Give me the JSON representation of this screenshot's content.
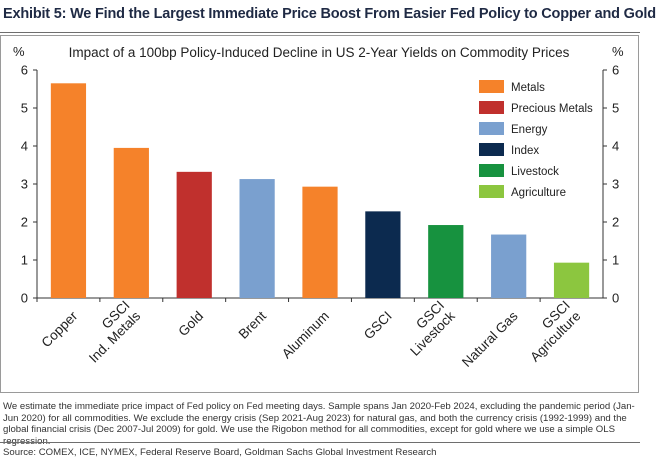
{
  "header": {
    "title": "Exhibit 5: We Find the Largest Immediate Price Boost From Easier Fed Policy to Copper and Gold"
  },
  "chart_data": {
    "type": "bar",
    "title": "Impact of a 100bp Policy-Induced Decline in US 2-Year Yields on Commodity Prices",
    "ylabel_left": "%",
    "ylabel_right": "%",
    "ylim": [
      0,
      6
    ],
    "yticks": [
      "0",
      "1",
      "2",
      "3",
      "4",
      "5",
      "6"
    ],
    "grid": false,
    "legend_position": "top-right",
    "categories": [
      {
        "lines": [
          "Copper"
        ],
        "value": 5.65,
        "group": "Metals"
      },
      {
        "lines": [
          "GSCI",
          "Ind. Metals"
        ],
        "value": 3.95,
        "group": "Metals"
      },
      {
        "lines": [
          "Gold"
        ],
        "value": 3.32,
        "group": "Precious Metals"
      },
      {
        "lines": [
          "Brent"
        ],
        "value": 3.13,
        "group": "Energy"
      },
      {
        "lines": [
          "Aluminum"
        ],
        "value": 2.93,
        "group": "Metals"
      },
      {
        "lines": [
          "GSCI"
        ],
        "value": 2.28,
        "group": "Index"
      },
      {
        "lines": [
          "GSCI",
          "Livestock"
        ],
        "value": 1.92,
        "group": "Livestock"
      },
      {
        "lines": [
          "Natural Gas"
        ],
        "value": 1.67,
        "group": "Energy"
      },
      {
        "lines": [
          "GSCI",
          "Agriculture"
        ],
        "value": 0.93,
        "group": "Agriculture"
      }
    ],
    "legend": [
      {
        "name": "Metals",
        "color": "#f5822a"
      },
      {
        "name": "Precious Metals",
        "color": "#c0302d"
      },
      {
        "name": "Energy",
        "color": "#7aa0cf"
      },
      {
        "name": "Index",
        "color": "#0c2a4f"
      },
      {
        "name": "Livestock",
        "color": "#17923f"
      },
      {
        "name": "Agriculture",
        "color": "#8cc63f"
      }
    ]
  },
  "footnote": "We estimate the immediate price impact of Fed policy on Fed meeting days. Sample spans Jan 2020-Feb 2024, excluding the pandemic period (Jan-Jun 2020) for all commodities. We exclude the energy crisis (Sep 2021-Aug 2023) for natural gas, and both the currency crisis (1992-1999) and the global financial crisis (Dec 2007-Jul 2009) for gold. We use the Rigobon method for all commodities, except for gold where we use a simple OLS regression.",
  "source": "Source: COMEX, ICE, NYMEX, Federal Reserve Board, Goldman Sachs Global Investment Research"
}
